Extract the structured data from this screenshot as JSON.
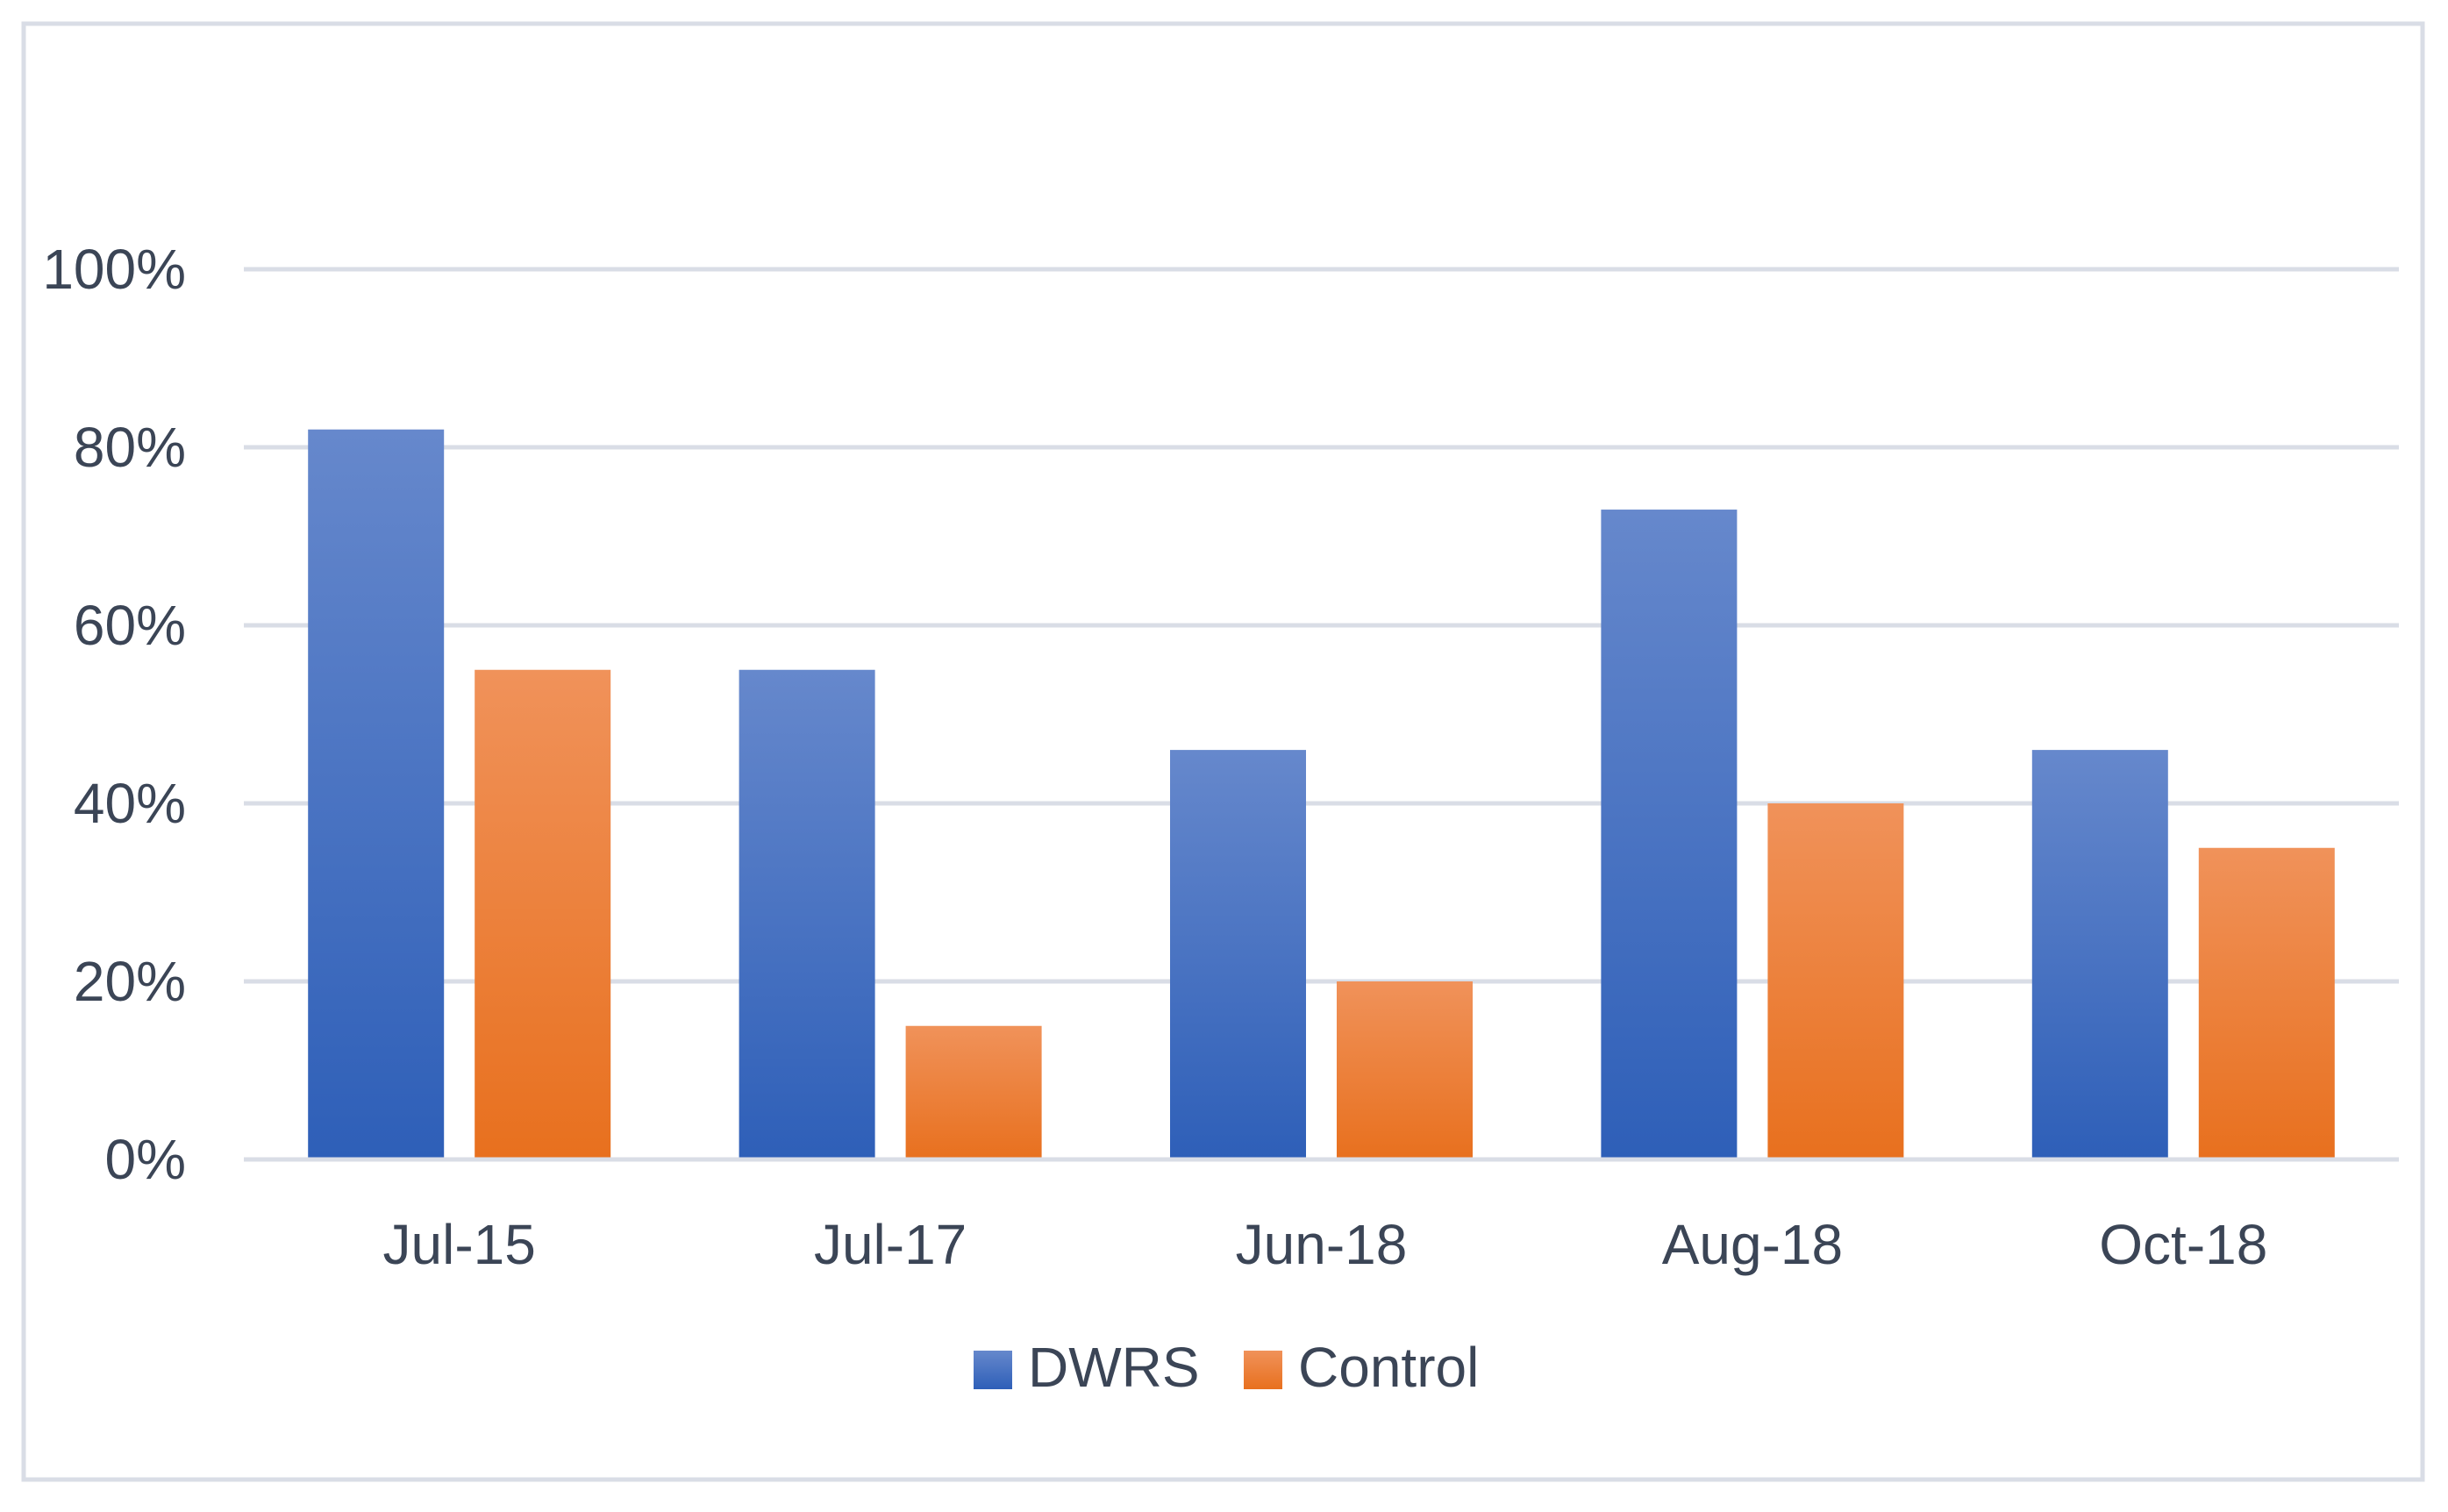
{
  "chart_data": {
    "type": "bar",
    "title": "",
    "xlabel": "",
    "ylabel": "",
    "categories": [
      "Jul-15",
      "Jul-17",
      "Jun-18",
      "Aug-18",
      "Oct-18"
    ],
    "series": [
      {
        "name": "DWRS",
        "values": [
          82,
          55,
          46,
          73,
          46
        ]
      },
      {
        "name": "Control",
        "values": [
          55,
          15,
          20,
          40,
          35
        ]
      }
    ],
    "ylim": [
      0,
      100
    ],
    "yticks": [
      0,
      20,
      40,
      60,
      80,
      100
    ],
    "ytick_labels": [
      "0%",
      "20%",
      "40%",
      "60%",
      "80%",
      "100%"
    ],
    "grid": true,
    "legend_position": "bottom-center"
  },
  "colors": {
    "dwrs_top": "#6688cc",
    "dwrs_bottom": "#2e5fb8",
    "control_top": "#f0925a",
    "control_bottom": "#e8701e",
    "grid": "#d9dde6",
    "axis_text": "#3b4556",
    "frame": "#d9dde6"
  }
}
